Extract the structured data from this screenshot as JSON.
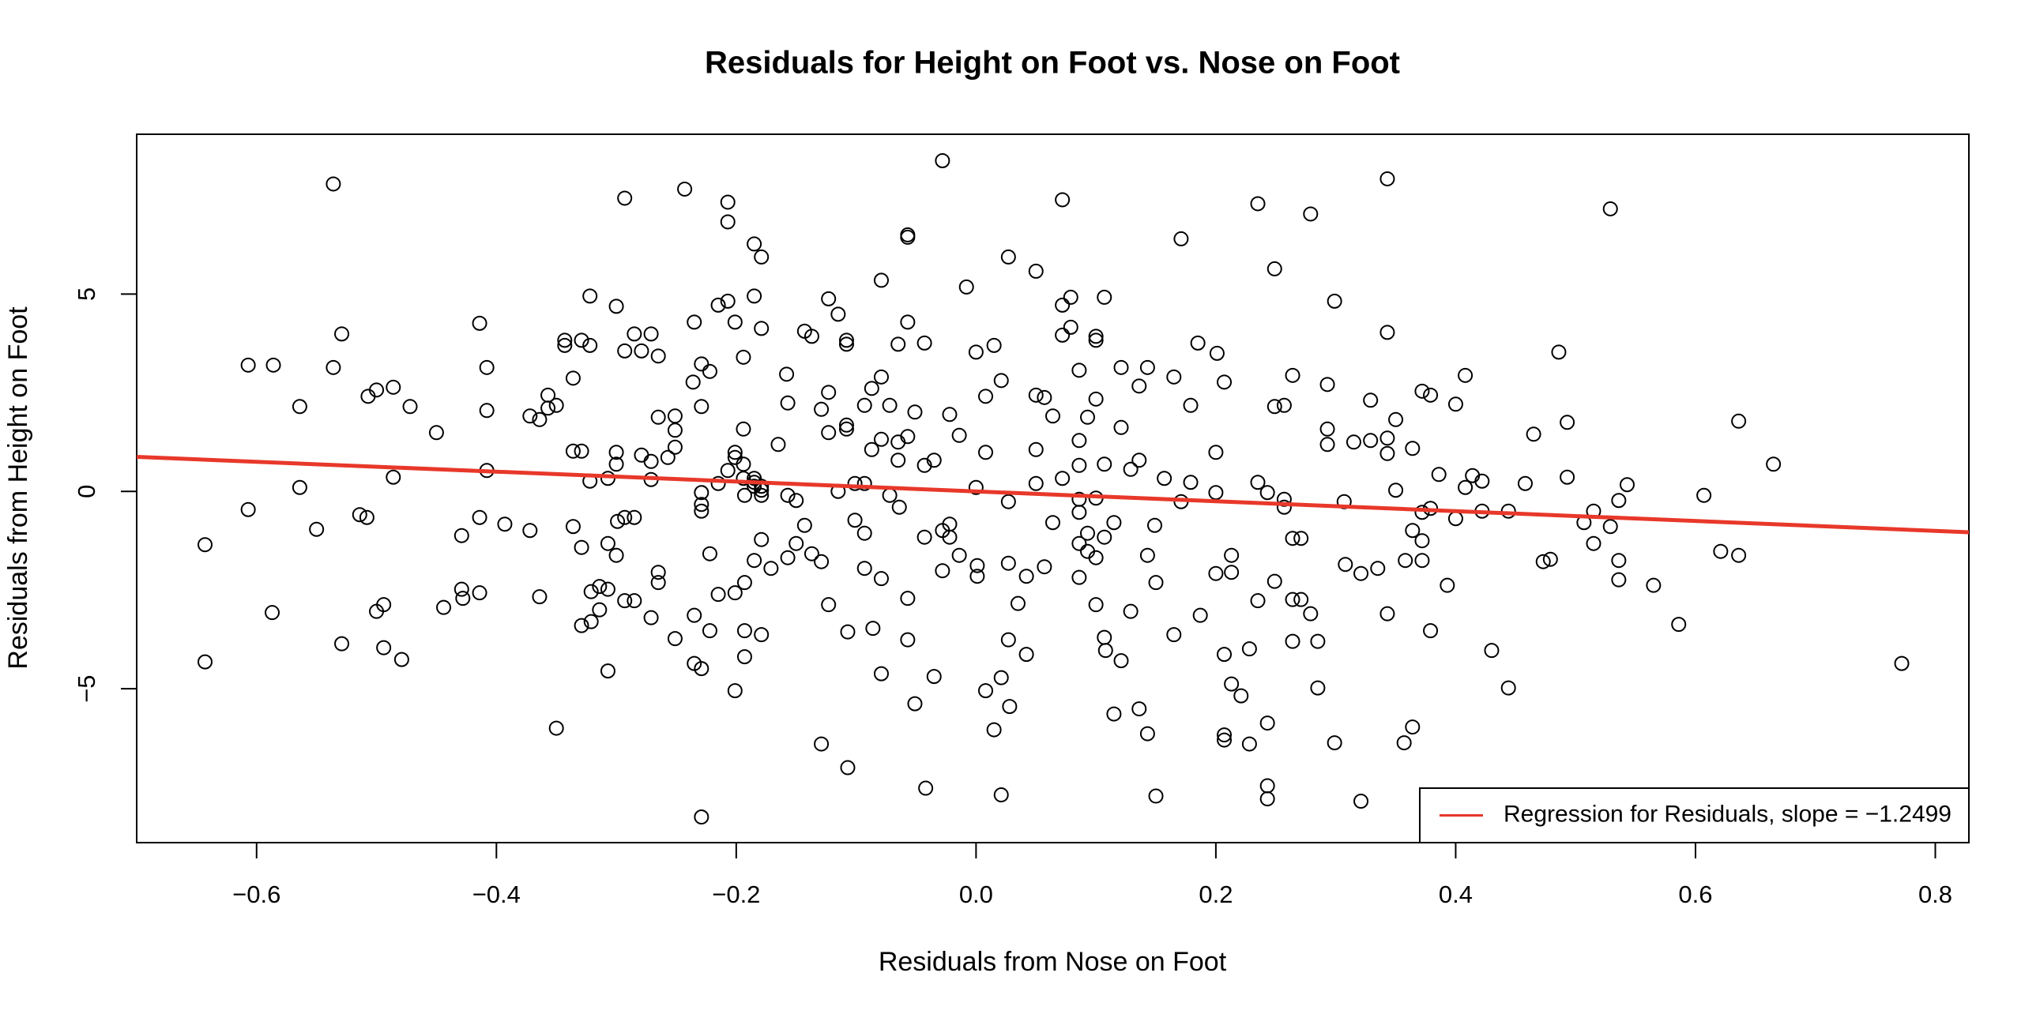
{
  "chart_data": {
    "type": "scatter",
    "title": "Residuals for Height on Foot vs. Nose on Foot",
    "x_label": "Residuals from Nose on Foot",
    "y_label": "Residuals from Height on Foot",
    "xlim": [
      -0.7,
      0.828
    ],
    "ylim": [
      -8.9,
      9.05
    ],
    "xticks": [
      {
        "value": -0.6,
        "label": "−0.6"
      },
      {
        "value": -0.4,
        "label": "−0.4"
      },
      {
        "value": -0.2,
        "label": "−0.2"
      },
      {
        "value": 0,
        "label": "0.0"
      },
      0.2,
      0.4,
      0.6,
      0.8
    ],
    "yticks": [
      {
        "value": -5,
        "label": "−5"
      },
      0,
      5
    ],
    "grid": false,
    "legend": "bottom-right",
    "color": "#000000",
    "regression": {
      "name": "Regression for Residuals, slope =  −1.2499",
      "slope": -1.2499,
      "intercept": 0,
      "color": "#e8382a"
    },
    "x": [
      -0.643,
      -0.643,
      -0.607,
      -0.607,
      -0.586,
      -0.587,
      -0.564,
      -0.564,
      -0.55,
      -0.536,
      -0.536,
      -0.529,
      -0.529,
      -0.514,
      -0.508,
      -0.507,
      -0.5,
      -0.5,
      -0.494,
      -0.494,
      -0.486,
      -0.486,
      -0.479,
      -0.472,
      -0.45,
      -0.444,
      -0.429,
      -0.429,
      -0.428,
      -0.414,
      -0.414,
      -0.414,
      -0.408,
      -0.408,
      -0.408,
      -0.393,
      -0.372,
      -0.372,
      -0.364,
      -0.364,
      -0.357,
      -0.357,
      -0.35,
      -0.35,
      -0.343,
      -0.343,
      -0.336,
      -0.336,
      -0.336,
      -0.329,
      -0.329,
      -0.329,
      -0.329,
      -0.322,
      -0.322,
      -0.322,
      -0.321,
      -0.321,
      -0.314,
      -0.314,
      -0.307,
      -0.307,
      -0.307,
      -0.307,
      -0.3,
      -0.3,
      -0.3,
      -0.3,
      -0.299,
      -0.293,
      -0.293,
      -0.293,
      -0.293,
      -0.285,
      -0.285,
      -0.285,
      -0.279,
      -0.279,
      -0.271,
      -0.271,
      -0.271,
      -0.271,
      -0.265,
      -0.265,
      -0.265,
      -0.265,
      -0.257,
      -0.251,
      -0.251,
      -0.251,
      -0.251,
      -0.243,
      -0.236,
      -0.235,
      -0.235,
      -0.235,
      -0.229,
      -0.229,
      -0.229,
      -0.229,
      -0.229,
      -0.229,
      -0.229,
      -0.222,
      -0.222,
      -0.222,
      -0.215,
      -0.215,
      -0.215,
      -0.207,
      -0.207,
      -0.207,
      -0.207,
      -0.201,
      -0.201,
      -0.201,
      -0.201,
      -0.201,
      -0.194,
      -0.194,
      -0.194,
      -0.194,
      -0.193,
      -0.193,
      -0.193,
      -0.193,
      -0.185,
      -0.185,
      -0.185,
      -0.185,
      -0.185,
      -0.185,
      -0.179,
      -0.179,
      -0.179,
      -0.179,
      -0.179,
      -0.179,
      -0.179,
      -0.171,
      -0.165,
      -0.158,
      -0.157,
      -0.157,
      -0.157,
      -0.15,
      -0.15,
      -0.143,
      -0.143,
      -0.137,
      -0.137,
      -0.129,
      -0.129,
      -0.129,
      -0.123,
      -0.123,
      -0.123,
      -0.123,
      -0.115,
      -0.115,
      -0.108,
      -0.108,
      -0.108,
      -0.108,
      -0.107,
      -0.107,
      -0.101,
      -0.101,
      -0.093,
      -0.093,
      -0.093,
      -0.093,
      -0.087,
      -0.087,
      -0.086,
      -0.079,
      -0.079,
      -0.079,
      -0.079,
      -0.079,
      -0.072,
      -0.072,
      -0.065,
      -0.065,
      -0.065,
      -0.064,
      -0.057,
      -0.057,
      -0.057,
      -0.057,
      -0.057,
      -0.057,
      -0.051,
      -0.051,
      -0.043,
      -0.043,
      -0.043,
      -0.042,
      -0.035,
      -0.035,
      -0.028,
      -0.028,
      -0.028,
      -0.022,
      -0.022,
      -0.022,
      -0.014,
      -0.014,
      -0.008,
      0.0,
      0.0,
      0.001,
      0.001,
      0.008,
      0.008,
      0.008,
      0.015,
      0.015,
      0.021,
      0.021,
      0.021,
      0.027,
      0.027,
      0.027,
      0.027,
      0.028,
      0.035,
      0.042,
      0.042,
      0.05,
      0.05,
      0.05,
      0.05,
      0.057,
      0.057,
      0.064,
      0.064,
      0.072,
      0.072,
      0.072,
      0.072,
      0.079,
      0.079,
      0.086,
      0.086,
      0.086,
      0.086,
      0.086,
      0.086,
      0.086,
      0.093,
      0.093,
      0.093,
      0.1,
      0.1,
      0.1,
      0.1,
      0.1,
      0.1,
      0.107,
      0.107,
      0.107,
      0.107,
      0.108,
      0.115,
      0.115,
      0.121,
      0.121,
      0.121,
      0.129,
      0.129,
      0.136,
      0.136,
      0.136,
      0.143,
      0.143,
      0.143,
      0.149,
      0.15,
      0.15,
      0.157,
      0.165,
      0.165,
      0.171,
      0.171,
      0.179,
      0.179,
      0.185,
      0.187,
      0.2,
      0.2,
      0.2,
      0.201,
      0.207,
      0.207,
      0.207,
      0.207,
      0.213,
      0.213,
      0.213,
      0.221,
      0.228,
      0.228,
      0.235,
      0.235,
      0.235,
      0.243,
      0.243,
      0.243,
      0.243,
      0.249,
      0.249,
      0.249,
      0.257,
      0.257,
      0.257,
      0.264,
      0.264,
      0.264,
      0.264,
      0.271,
      0.271,
      0.279,
      0.279,
      0.285,
      0.285,
      0.293,
      0.293,
      0.293,
      0.299,
      0.299,
      0.307,
      0.308,
      0.315,
      0.321,
      0.321,
      0.329,
      0.329,
      0.335,
      0.343,
      0.343,
      0.343,
      0.343,
      0.343,
      0.35,
      0.35,
      0.357,
      0.358,
      0.364,
      0.364,
      0.364,
      0.372,
      0.372,
      0.372,
      0.372,
      0.379,
      0.379,
      0.379,
      0.386,
      0.393,
      0.4,
      0.4,
      0.408,
      0.408,
      0.414,
      0.422,
      0.422,
      0.43,
      0.444,
      0.444,
      0.458,
      0.465,
      0.473,
      0.479,
      0.486,
      0.493,
      0.493,
      0.507,
      0.515,
      0.515,
      0.529,
      0.529,
      0.536,
      0.536,
      0.536,
      0.543,
      0.565,
      0.586,
      0.607,
      0.621,
      0.636,
      0.636,
      0.665,
      0.772
    ],
    "y": [
      -1.35,
      -4.32,
      3.2,
      -0.46,
      3.2,
      -3.07,
      2.15,
      0.1,
      -0.96,
      7.79,
      3.14,
      3.99,
      -3.86,
      -0.59,
      -0.66,
      2.41,
      2.57,
      -3.04,
      -2.87,
      -3.96,
      2.64,
      0.36,
      -4.26,
      2.15,
      1.49,
      -2.94,
      -1.12,
      -2.48,
      -2.71,
      4.26,
      -2.57,
      -0.66,
      3.14,
      2.05,
      0.53,
      -0.83,
      1.91,
      -0.99,
      1.82,
      -2.67,
      2.44,
      2.11,
      2.18,
      -6.0,
      3.83,
      3.7,
      2.87,
      1.02,
      -0.89,
      1.02,
      -1.42,
      3.83,
      -3.4,
      4.95,
      3.7,
      0.26,
      -2.54,
      -3.3,
      -3.0,
      -2.41,
      -2.48,
      -1.32,
      -4.55,
      0.33,
      4.69,
      0.69,
      0.99,
      -1.62,
      -0.76,
      7.43,
      3.56,
      -0.66,
      -2.77,
      3.99,
      -0.66,
      -2.77,
      3.56,
      0.92,
      3.99,
      0.3,
      0.76,
      -3.2,
      3.43,
      1.88,
      -2.31,
      -2.05,
      0.86,
      1.91,
      1.55,
      1.12,
      -3.73,
      7.66,
      2.77,
      4.29,
      -3.14,
      -4.36,
      -0.03,
      -0.33,
      -0.5,
      -4.49,
      -8.25,
      3.23,
      2.15,
      3.04,
      -1.58,
      -3.53,
      4.72,
      0.2,
      -2.61,
      7.33,
      6.83,
      4.82,
      0.53,
      4.29,
      0.99,
      0.86,
      -2.57,
      -5.05,
      3.4,
      1.58,
      0.69,
      0.33,
      -0.1,
      -2.31,
      -3.53,
      -4.19,
      6.27,
      4.95,
      0.33,
      0.23,
      0.13,
      -1.75,
      5.94,
      4.13,
      0.13,
      0.03,
      -0.1,
      -1.22,
      -3.63,
      -1.95,
      1.19,
      2.97,
      2.24,
      -0.1,
      -1.68,
      -0.23,
      -1.32,
      4.06,
      -0.86,
      3.93,
      -1.58,
      2.08,
      -1.78,
      -6.4,
      2.51,
      4.88,
      1.49,
      -2.87,
      4.49,
      0.0,
      3.83,
      3.73,
      1.68,
      1.58,
      -3.56,
      -7.0,
      0.2,
      -0.73,
      0.2,
      2.18,
      -1.06,
      -1.95,
      2.61,
      1.06,
      -3.47,
      5.35,
      2.9,
      1.32,
      -2.21,
      -4.62,
      2.18,
      -0.1,
      3.73,
      1.25,
      0.79,
      -0.4,
      6.5,
      6.44,
      4.29,
      1.39,
      -2.71,
      -3.76,
      2.01,
      -5.38,
      0.66,
      3.76,
      -1.16,
      -7.52,
      -4.69,
      0.79,
      8.38,
      -0.99,
      -2.01,
      -0.83,
      -1.16,
      1.95,
      1.42,
      -1.62,
      5.18,
      3.53,
      0.1,
      -1.88,
      -2.15,
      2.41,
      0.99,
      -5.05,
      3.7,
      -6.04,
      2.81,
      -4.72,
      -7.69,
      5.94,
      -0.26,
      -1.82,
      -3.76,
      -5.45,
      -2.84,
      -2.15,
      -4.13,
      5.58,
      2.44,
      1.06,
      0.2,
      2.38,
      -1.91,
      1.91,
      -0.79,
      4.72,
      7.39,
      3.96,
      0.33,
      4.92,
      4.16,
      3.07,
      1.29,
      0.66,
      -0.2,
      -0.53,
      -1.32,
      -2.18,
      1.88,
      -1.06,
      -1.52,
      3.93,
      3.83,
      2.34,
      -0.17,
      -1.68,
      -2.87,
      4.92,
      0.69,
      -1.16,
      -3.7,
      -4.03,
      -5.64,
      -0.79,
      1.62,
      3.14,
      -4.29,
      0.56,
      -3.04,
      2.67,
      0.79,
      -5.51,
      3.14,
      -1.62,
      -6.14,
      -0.86,
      -7.72,
      -2.31,
      0.33,
      -3.63,
      2.9,
      6.4,
      -0.26,
      0.23,
      2.18,
      3.76,
      -3.14,
      0.99,
      -0.03,
      -2.08,
      3.5,
      2.77,
      -4.13,
      -6.17,
      -6.3,
      -4.88,
      -1.62,
      -2.05,
      -5.18,
      -3.99,
      -6.4,
      7.29,
      0.23,
      -2.77,
      -0.03,
      -5.87,
      -7.46,
      -7.79,
      5.64,
      2.15,
      -2.28,
      2.18,
      -0.2,
      -0.4,
      2.94,
      -1.19,
      -2.74,
      -3.8,
      -1.19,
      -2.74,
      7.03,
      -3.1,
      -3.8,
      -4.98,
      2.71,
      1.58,
      1.19,
      4.82,
      -6.37,
      -0.26,
      -1.85,
      1.25,
      -2.08,
      -7.85,
      2.31,
      1.29,
      -1.95,
      7.92,
      4.03,
      1.35,
      0.96,
      -3.1,
      1.82,
      0.03,
      -6.37,
      -1.75,
      -5.97,
      1.09,
      -0.99,
      2.54,
      -0.53,
      -1.25,
      -1.75,
      2.44,
      -0.43,
      -3.53,
      0.43,
      -2.38,
      2.21,
      -0.69,
      0.1,
      2.94,
      0.4,
      -0.5,
      0.26,
      -4.03,
      -0.5,
      -4.98,
      0.2,
      1.45,
      -1.78,
      -1.72,
      3.53,
      1.75,
      0.36,
      -0.79,
      -0.5,
      -1.32,
      -0.89,
      7.16,
      -0.23,
      -1.75,
      -2.24,
      0.17,
      -2.38,
      -3.37,
      -0.1,
      -1.52,
      1.78,
      -1.62,
      0.69,
      -4.36
    ]
  }
}
